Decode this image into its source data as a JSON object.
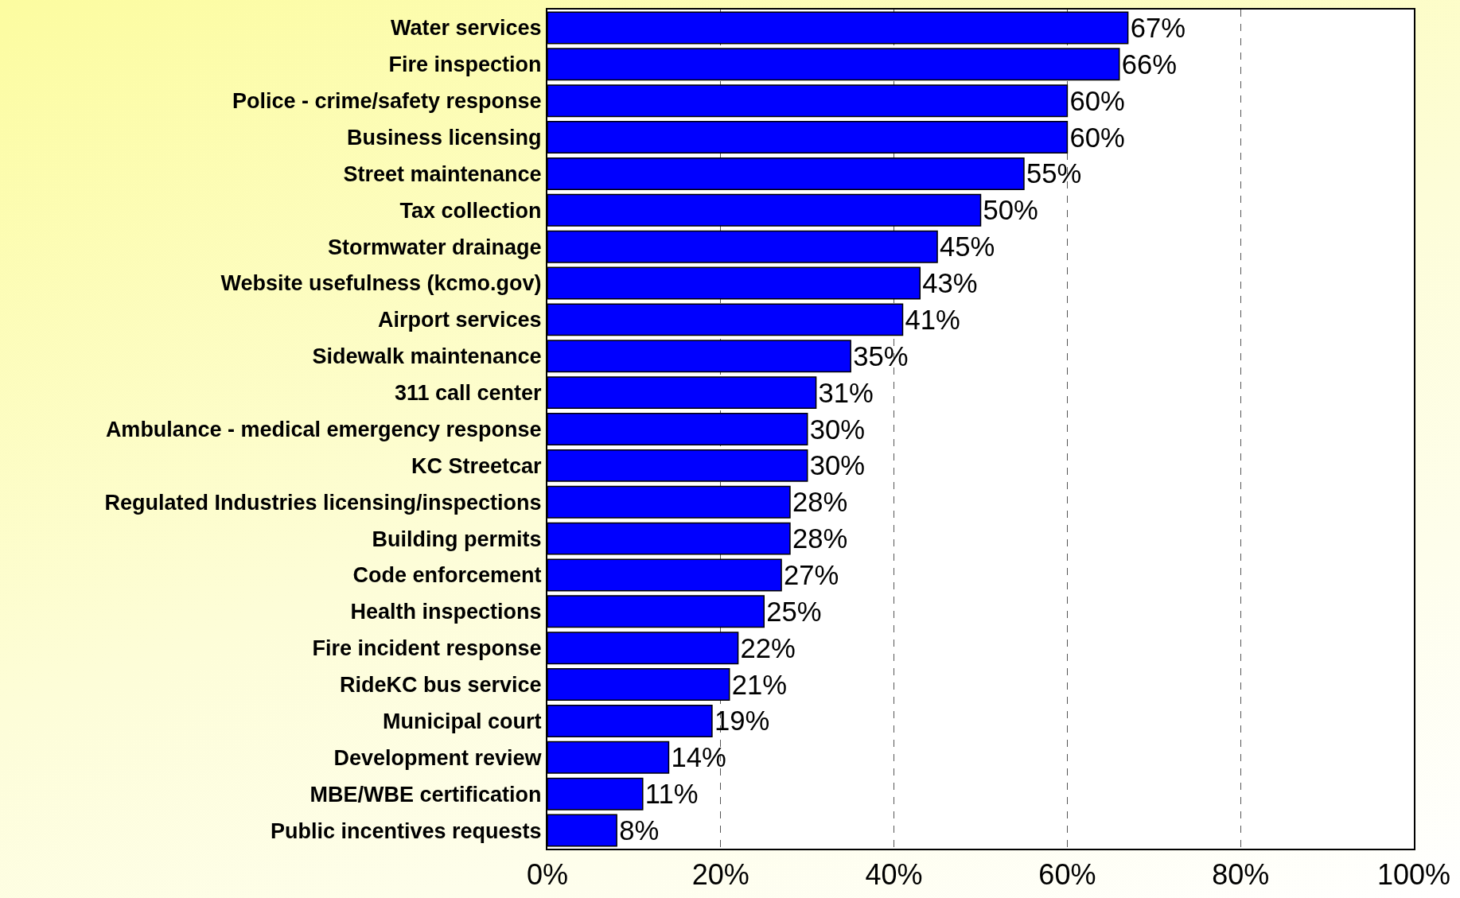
{
  "chart_data": {
    "type": "bar",
    "orientation": "horizontal",
    "categories": [
      "Water services",
      "Fire inspection",
      "Police - crime/safety response",
      "Business licensing",
      "Street maintenance",
      "Tax collection",
      "Stormwater drainage",
      "Website usefulness (kcmo.gov)",
      "Airport services",
      "Sidewalk maintenance",
      "311 call center",
      "Ambulance - medical emergency response",
      "KC Streetcar",
      "Regulated Industries licensing/inspections",
      "Building permits",
      "Code enforcement",
      "Health inspections",
      "Fire incident response",
      "RideKC bus service",
      "Municipal court",
      "Development review",
      "MBE/WBE certification",
      "Public incentives requests"
    ],
    "values": [
      67,
      66,
      60,
      60,
      55,
      50,
      45,
      43,
      41,
      35,
      31,
      30,
      30,
      28,
      28,
      27,
      25,
      22,
      21,
      19,
      14,
      11,
      8
    ],
    "color": "#0000ff",
    "xlim": [
      0,
      100
    ],
    "xticks": [
      {
        "value": 0,
        "label": "0%"
      },
      {
        "value": 20,
        "label": "20%"
      },
      {
        "value": 40,
        "label": "40%"
      },
      {
        "value": 60,
        "label": "60%"
      },
      {
        "value": 80,
        "label": "80%"
      },
      {
        "value": 100,
        "label": "100%"
      }
    ],
    "value_labels": [
      "67%",
      "66%",
      "60%",
      "60%",
      "55%",
      "50%",
      "45%",
      "43%",
      "41%",
      "35%",
      "31%",
      "30%",
      "30%",
      "28%",
      "28%",
      "27%",
      "25%",
      "22%",
      "21%",
      "19%",
      "14%",
      "11%",
      "8%"
    ],
    "grid": "x",
    "legend": false
  }
}
